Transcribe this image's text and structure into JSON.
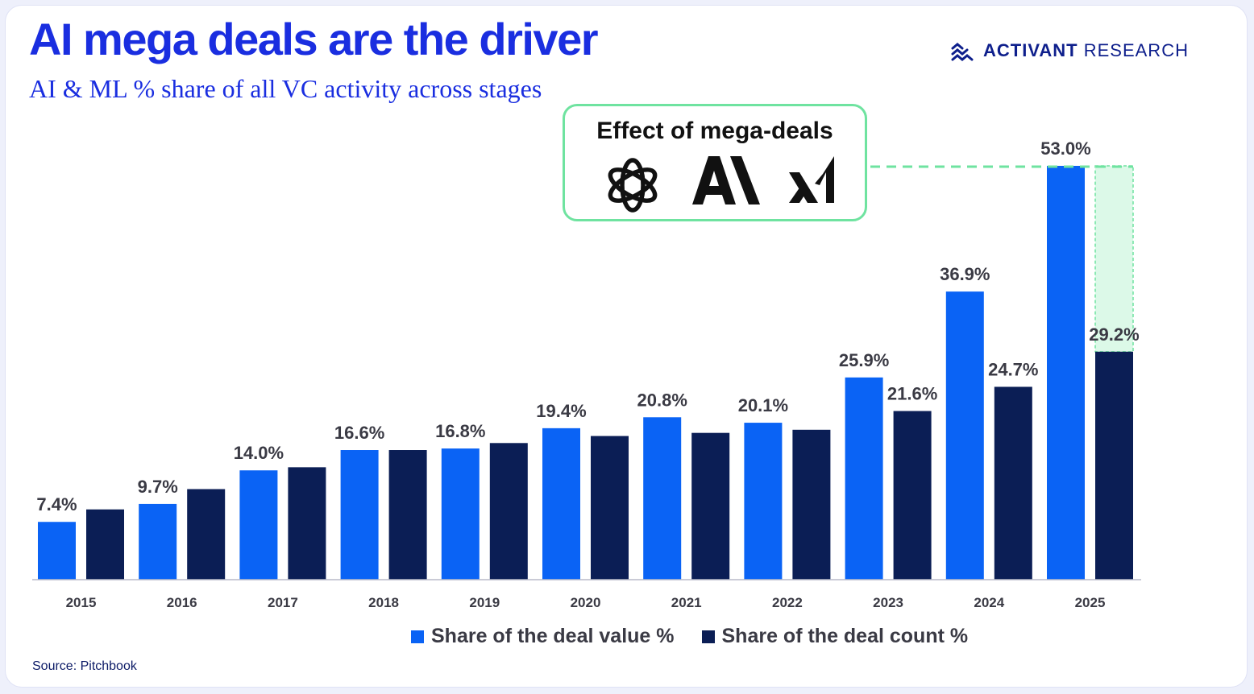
{
  "title": "AI mega deals are the driver",
  "subtitle": "AI & ML % share of all VC activity across stages",
  "brand": {
    "name_bold": "ACTIVANT",
    "name_light": "RESEARCH",
    "icon": "activant-stripes-icon"
  },
  "callout": {
    "title": "Effect of mega-deals",
    "logos": [
      "openai-logo-icon",
      "anthropic-logo-icon",
      "xai-logo-icon"
    ]
  },
  "colors": {
    "title": "#1a2ee0",
    "deal_value": "#0a63f5",
    "deal_count": "#0b1e55",
    "highlight_border": "#6fe3a0",
    "highlight_fill": "#dcf9e8"
  },
  "legend": {
    "value_label": "Share of the deal value %",
    "count_label": "Share of the deal count %"
  },
  "source": "Source: Pitchbook",
  "chart_data": {
    "type": "bar",
    "categories": [
      "2015",
      "2016",
      "2017",
      "2018",
      "2019",
      "2020",
      "2021",
      "2022",
      "2023",
      "2024",
      "2025"
    ],
    "series": [
      {
        "name": "Share of the deal value %",
        "values": [
          7.4,
          9.7,
          14.0,
          16.6,
          16.8,
          19.4,
          20.8,
          20.1,
          25.9,
          36.9,
          53.0
        ],
        "labels": [
          "7.4%",
          "9.7%",
          "14.0%",
          "16.6%",
          "16.8%",
          "19.4%",
          "20.8%",
          "20.1%",
          "25.9%",
          "36.9%",
          "53.0%"
        ]
      },
      {
        "name": "Share of the deal count %",
        "values": [
          9.0,
          11.6,
          14.4,
          16.6,
          17.5,
          18.4,
          18.8,
          19.2,
          21.6,
          24.7,
          29.2
        ],
        "labels": [
          null,
          null,
          null,
          null,
          null,
          null,
          null,
          null,
          "21.6%",
          "24.7%",
          "29.2%"
        ]
      }
    ],
    "ylim": [
      0,
      53
    ],
    "grid": false,
    "legend_position": "bottom",
    "highlight": {
      "category": "2025",
      "from": 29.2,
      "to": 53.0,
      "note": "Effect of mega-deals"
    }
  }
}
